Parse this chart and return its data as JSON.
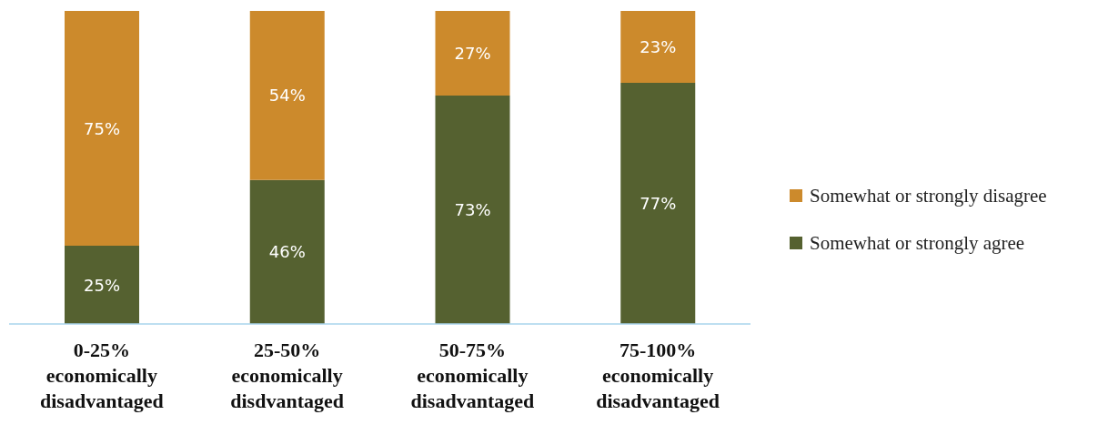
{
  "chart_data": {
    "type": "bar",
    "stacked": true,
    "categories": [
      "0-25% economically disadvantaged",
      "25-50% economically disdvantaged",
      "50-75% economically disadvantaged",
      "75-100% economically disadvantaged"
    ],
    "series": [
      {
        "name": "Somewhat or strongly agree",
        "color": "#556130",
        "values": [
          25,
          46,
          73,
          77
        ],
        "value_labels": [
          "25%",
          "46%",
          "73%",
          "77%"
        ]
      },
      {
        "name": "Somewhat or strongly disagree",
        "color": "#cc8a2c",
        "values": [
          75,
          54,
          27,
          23
        ],
        "value_labels": [
          "75%",
          "54%",
          "27%",
          "23%"
        ]
      }
    ],
    "ylim": [
      0,
      100
    ],
    "tick_labels": "x",
    "grid": false,
    "legend": "right"
  }
}
